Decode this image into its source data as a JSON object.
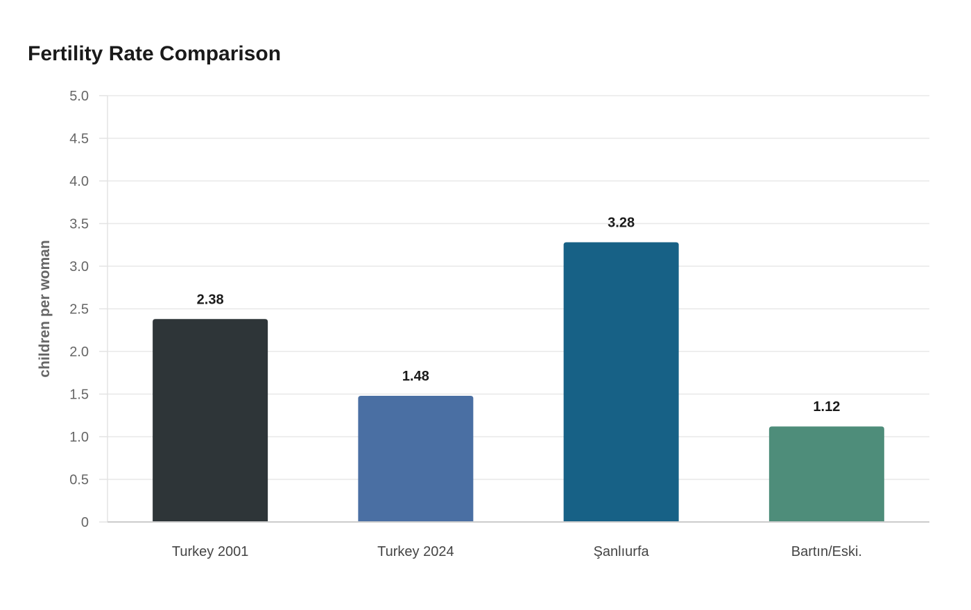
{
  "chart_data": {
    "type": "bar",
    "title": "Fertility Rate Comparison",
    "xlabel": "",
    "ylabel": "children per woman",
    "ylim": [
      0,
      5.0
    ],
    "yticks": [
      "0",
      "0.5",
      "1.0",
      "1.5",
      "2.0",
      "2.5",
      "3.0",
      "3.5",
      "4.0",
      "4.5",
      "5.0"
    ],
    "categories": [
      "Turkey 2001",
      "Turkey 2024",
      "Şanlıurfa",
      "Bartın/Eski."
    ],
    "values": [
      2.38,
      1.48,
      3.28,
      1.12
    ],
    "value_labels": [
      "2.38",
      "1.48",
      "3.28",
      "1.12"
    ],
    "colors": [
      "#2e3538",
      "#4a6fa3",
      "#176186",
      "#4e8d7a"
    ],
    "grid": true,
    "legend": "none"
  }
}
